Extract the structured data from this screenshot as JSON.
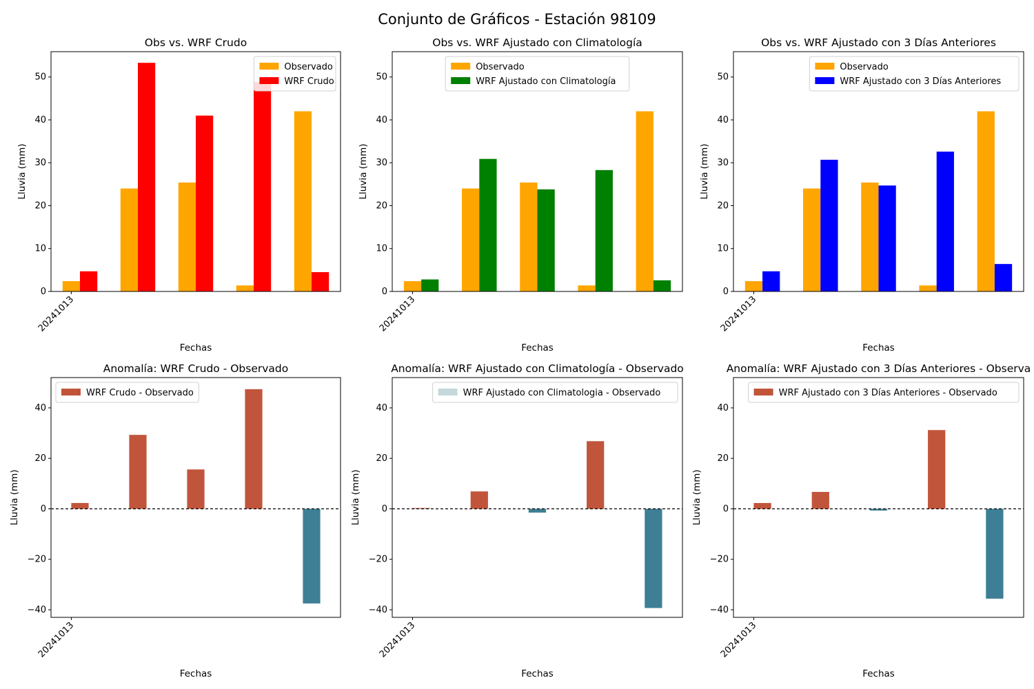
{
  "figure": {
    "title": "Conjunto de Gráficos - Estación 98109"
  },
  "chart_data": [
    {
      "type": "bar",
      "title": "Obs vs. WRF Crudo",
      "xlabel": "Fechas",
      "ylabel": "Lluvia (mm)",
      "ylim": [
        0,
        55.9
      ],
      "yticks": [
        0,
        10,
        20,
        30,
        40,
        50
      ],
      "xtick_labels": [
        "20241013"
      ],
      "legend_position": "upper right",
      "series": [
        {
          "name": "Observado",
          "color": "#ffa500",
          "values": [
            2.4,
            24.0,
            25.4,
            1.4,
            42.0
          ]
        },
        {
          "name": "WRF Crudo",
          "color": "#ff0000",
          "values": [
            4.7,
            53.3,
            41.0,
            48.8,
            4.5
          ]
        }
      ]
    },
    {
      "type": "bar",
      "title": "Obs vs. WRF Ajustado con Climatología",
      "xlabel": "Fechas",
      "ylabel": "Lluvia (mm)",
      "ylim": [
        0,
        55.9
      ],
      "yticks": [
        0,
        10,
        20,
        30,
        40,
        50
      ],
      "xtick_labels": [
        "20241013"
      ],
      "legend_position": "upper center",
      "series": [
        {
          "name": "Observado",
          "color": "#ffa500",
          "values": [
            2.4,
            24.0,
            25.4,
            1.4,
            42.0
          ]
        },
        {
          "name": "WRF Ajustado con Climatología",
          "color": "#008000",
          "values": [
            2.8,
            30.9,
            23.8,
            28.3,
            2.6
          ]
        }
      ]
    },
    {
      "type": "bar",
      "title": "Obs vs. WRF Ajustado con 3 Días Anteriores",
      "xlabel": "Fechas",
      "ylabel": "Lluvia (mm)",
      "ylim": [
        0,
        55.9
      ],
      "yticks": [
        0,
        10,
        20,
        30,
        40,
        50
      ],
      "xtick_labels": [
        "20241013"
      ],
      "legend_position": "upper right",
      "series": [
        {
          "name": "Observado",
          "color": "#ffa500",
          "values": [
            2.4,
            24.0,
            25.4,
            1.4,
            42.0
          ]
        },
        {
          "name": "WRF Ajustado con 3 Días Anteriores",
          "color": "#0000ff",
          "values": [
            4.7,
            30.7,
            24.7,
            32.6,
            6.4
          ]
        }
      ]
    },
    {
      "type": "bar",
      "title": "Anomalía: WRF Crudo - Observado",
      "xlabel": "Fechas",
      "ylabel": "Lluvia (mm)",
      "ylim": [
        -43,
        52
      ],
      "yticks": [
        -40,
        -20,
        0,
        20,
        40
      ],
      "ytick_labels": [
        "−40",
        "−20",
        "0",
        "20",
        "40"
      ],
      "xtick_labels": [
        "20241013"
      ],
      "legend_position": "upper left",
      "zero_line": true,
      "positive_color": "#c1553b",
      "negative_color": "#3e7f95",
      "series": [
        {
          "name": "WRF Crudo - Observado",
          "legend_color": "#c1553b",
          "values": [
            2.3,
            29.3,
            15.6,
            47.4,
            -37.5
          ]
        }
      ]
    },
    {
      "type": "bar",
      "title": "Anomalía: WRF Ajustado con Climatología - Observado",
      "xlabel": "Fechas",
      "ylabel": "Lluvia (mm)",
      "ylim": [
        -43,
        52
      ],
      "yticks": [
        -40,
        -20,
        0,
        20,
        40
      ],
      "ytick_labels": [
        "−40",
        "−20",
        "0",
        "20",
        "40"
      ],
      "xtick_labels": [
        "20241013"
      ],
      "legend_position": "upper right",
      "zero_line": true,
      "positive_color": "#c1553b",
      "negative_color": "#3e7f95",
      "series": [
        {
          "name": "WRF Ajustado con Climatologia - Observado",
          "legend_color": "#c5d8dc",
          "values": [
            0.3,
            6.9,
            -1.5,
            26.8,
            -39.3
          ]
        }
      ]
    },
    {
      "type": "bar",
      "title": "Anomalía: WRF Ajustado con 3 Días Anteriores - Observa",
      "xlabel": "Fechas",
      "ylabel": "Lluvia (mm)",
      "ylim": [
        -43,
        52
      ],
      "yticks": [
        -40,
        -20,
        0,
        20,
        40
      ],
      "ytick_labels": [
        "−40",
        "−20",
        "0",
        "20",
        "40"
      ],
      "xtick_labels": [
        "20241013"
      ],
      "legend_position": "upper right",
      "zero_line": true,
      "positive_color": "#c1553b",
      "negative_color": "#3e7f95",
      "series": [
        {
          "name": "WRF Ajustado con 3 Días Anteriores - Observado",
          "legend_color": "#c1553b",
          "values": [
            2.3,
            6.7,
            -0.7,
            31.2,
            -35.6
          ]
        }
      ]
    }
  ]
}
